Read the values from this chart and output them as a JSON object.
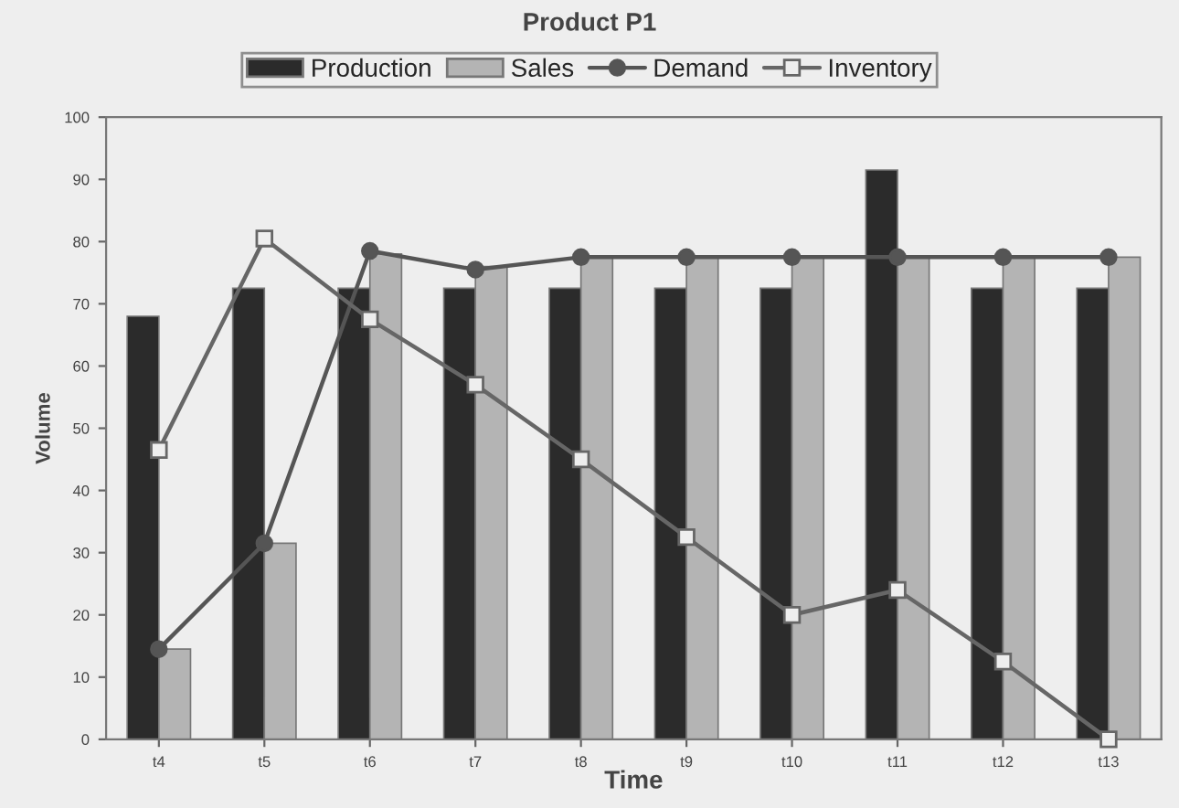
{
  "chart_data": {
    "type": "bar",
    "title": "Product P1",
    "xlabel": "Time",
    "ylabel": "Volume",
    "categories": [
      "t4",
      "t5",
      "t6",
      "t7",
      "t8",
      "t9",
      "t10",
      "t11",
      "t12",
      "t13"
    ],
    "series": [
      {
        "name": "Production",
        "color": "#2b2b2b",
        "values": [
          68,
          72.5,
          72.5,
          72.5,
          72.5,
          72.5,
          72.5,
          91.5,
          72.5,
          72.5
        ]
      },
      {
        "name": "Sales",
        "color": "#b4b4b4",
        "values": [
          14.5,
          31.5,
          78,
          76,
          77.5,
          77.5,
          77.5,
          77.5,
          77.5,
          77.5
        ]
      },
      {
        "name": "Demand",
        "type": "line",
        "color": "#555555",
        "marker": "circle",
        "values": [
          14.5,
          31.5,
          78.5,
          75.5,
          77.5,
          77.5,
          77.5,
          77.5,
          77.5,
          77.5
        ]
      },
      {
        "name": "Inventory",
        "type": "line",
        "color": "#666666",
        "marker": "square",
        "values": [
          46.5,
          80.5,
          67.5,
          57,
          45,
          32.5,
          20,
          24,
          12.5,
          0
        ]
      }
    ],
    "ylim": [
      0,
      100
    ],
    "yticks": [
      0,
      10,
      20,
      30,
      40,
      50,
      60,
      70,
      80,
      90,
      100
    ],
    "grid": false,
    "legend": "top"
  }
}
